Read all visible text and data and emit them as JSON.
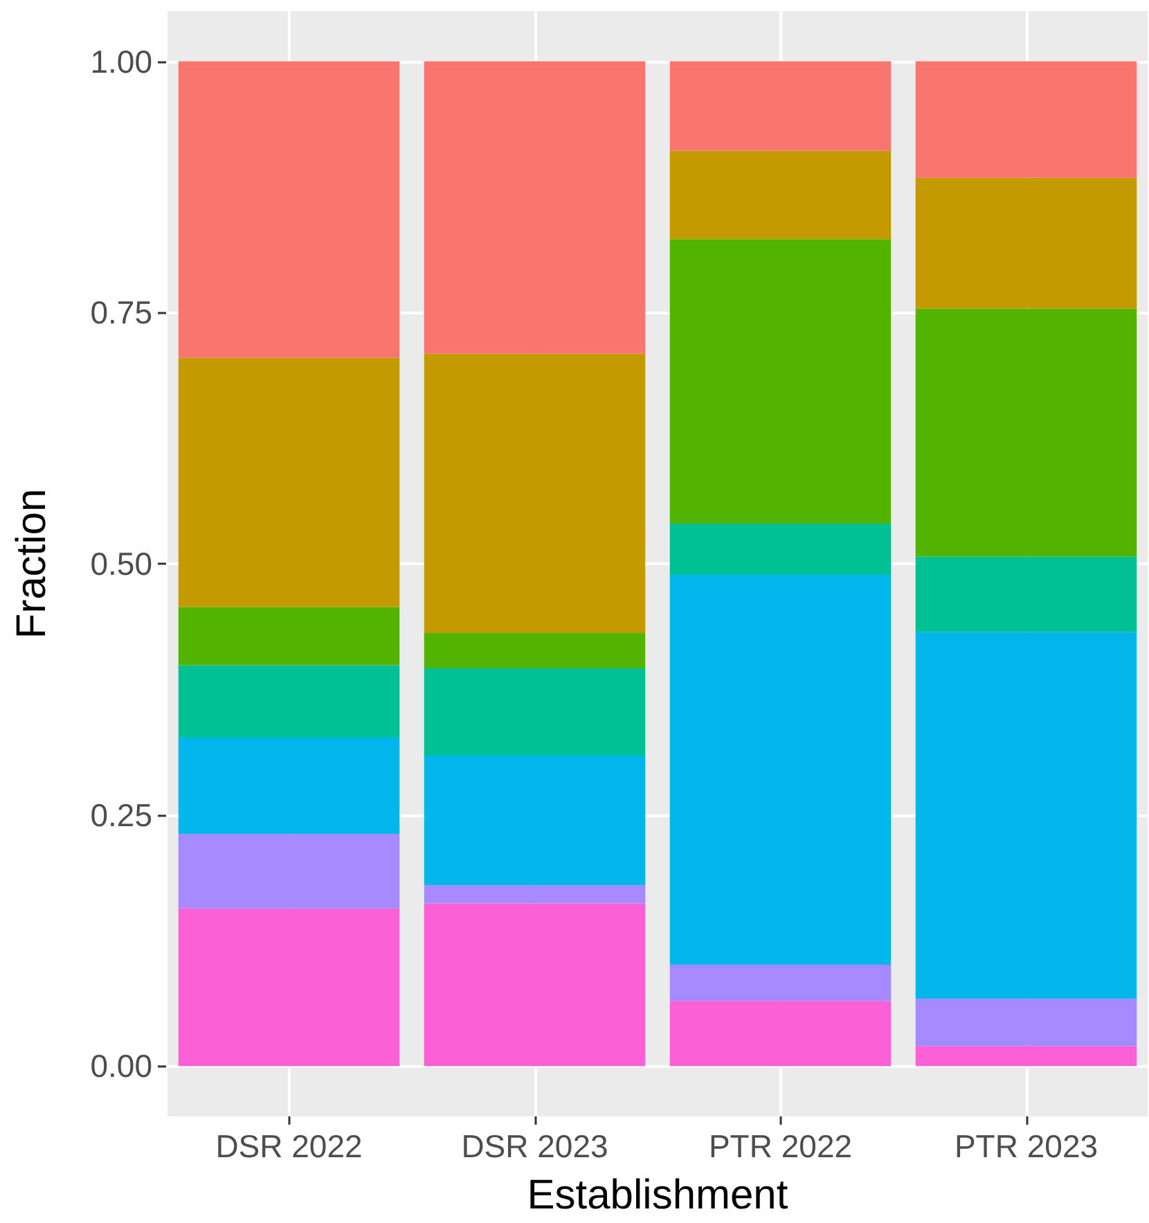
{
  "chart_data": {
    "type": "bar",
    "stacked": true,
    "xlabel": "Establishment",
    "ylabel": "Fraction",
    "categories": [
      "DSR 2022",
      "DSR 2023",
      "PTR 2022",
      "PTR 2023"
    ],
    "series": [
      {
        "color": "#fb61d7",
        "values": [
          0.157,
          0.162,
          0.065,
          0.02
        ]
      },
      {
        "color": "#a58aff",
        "values": [
          0.074,
          0.018,
          0.036,
          0.047
        ]
      },
      {
        "color": "#00b6eb",
        "values": [
          0.096,
          0.129,
          0.388,
          0.365
        ]
      },
      {
        "color": "#00c094",
        "values": [
          0.072,
          0.087,
          0.051,
          0.075
        ]
      },
      {
        "color": "#53b400",
        "values": [
          0.058,
          0.035,
          0.283,
          0.247
        ]
      },
      {
        "color": "#c49a00",
        "values": [
          0.248,
          0.278,
          0.088,
          0.13
        ]
      },
      {
        "color": "#f8766d",
        "values": [
          0.295,
          0.291,
          0.089,
          0.116
        ]
      }
    ],
    "ylim": [
      -0.05,
      1.05
    ],
    "yticks": [
      {
        "value": 0,
        "label": "0.00"
      },
      {
        "value": 0.25,
        "label": "0.25"
      },
      {
        "value": 0.5,
        "label": "0.50"
      },
      {
        "value": 0.75,
        "label": "0.75"
      },
      {
        "value": 1,
        "label": "1.00"
      }
    ],
    "grid": true
  }
}
